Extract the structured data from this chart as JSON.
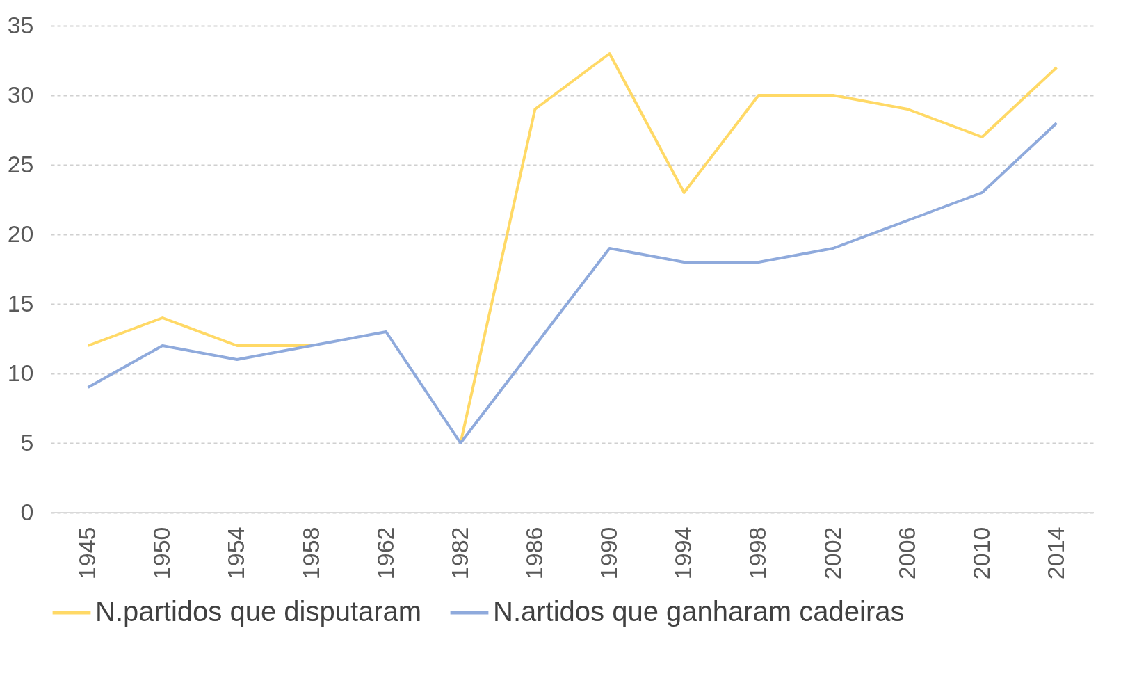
{
  "chart_data": {
    "type": "line",
    "categories": [
      "1945",
      "1950",
      "1954",
      "1958",
      "1962",
      "1982",
      "1986",
      "1990",
      "1994",
      "1998",
      "2002",
      "2006",
      "2010",
      "2014"
    ],
    "series": [
      {
        "name": "N.partidos que disputaram",
        "color": "#ffd966",
        "values": [
          12,
          14,
          12,
          12,
          null,
          5,
          29,
          33,
          23,
          30,
          30,
          29,
          27,
          32
        ]
      },
      {
        "name": "N.artidos que ganharam cadeiras",
        "color": "#8faadc",
        "values": [
          9,
          12,
          11,
          12,
          13,
          5,
          12,
          19,
          18,
          18,
          19,
          21,
          23,
          28
        ]
      }
    ],
    "ylim": [
      0,
      35
    ],
    "yticks": [
      0,
      5,
      10,
      15,
      20,
      25,
      30,
      35
    ],
    "grid": "y",
    "legend": "bottom",
    "marker": "none",
    "line_style": "solid"
  }
}
